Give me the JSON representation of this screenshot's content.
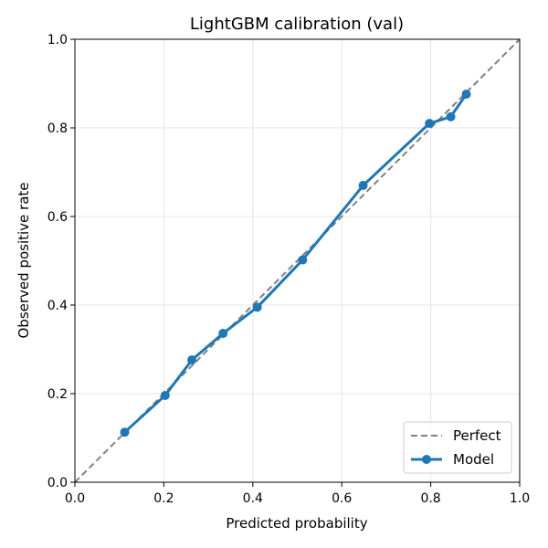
{
  "chart_data": {
    "type": "line",
    "title": "LightGBM calibration (val)",
    "xlabel": "Predicted probability",
    "ylabel": "Observed positive rate",
    "xlim": [
      0.0,
      1.0
    ],
    "ylim": [
      0.0,
      1.0
    ],
    "xticks": [
      "0.0",
      "0.2",
      "0.4",
      "0.6",
      "0.8",
      "1.0"
    ],
    "yticks": [
      "0.0",
      "0.2",
      "0.4",
      "0.6",
      "0.8",
      "1.0"
    ],
    "grid": true,
    "legend_position": "bottom-right",
    "series": [
      {
        "name": "Perfect",
        "style": "dashed",
        "color": "#808080",
        "x": [
          0.0,
          1.0
        ],
        "y": [
          0.0,
          1.0
        ]
      },
      {
        "name": "Model",
        "style": "solid-markers",
        "color": "#1f77b4",
        "x": [
          0.112,
          0.203,
          0.263,
          0.333,
          0.41,
          0.512,
          0.648,
          0.797,
          0.845,
          0.88
        ],
        "y": [
          0.113,
          0.196,
          0.276,
          0.336,
          0.395,
          0.502,
          0.67,
          0.81,
          0.825,
          0.876
        ]
      }
    ]
  }
}
